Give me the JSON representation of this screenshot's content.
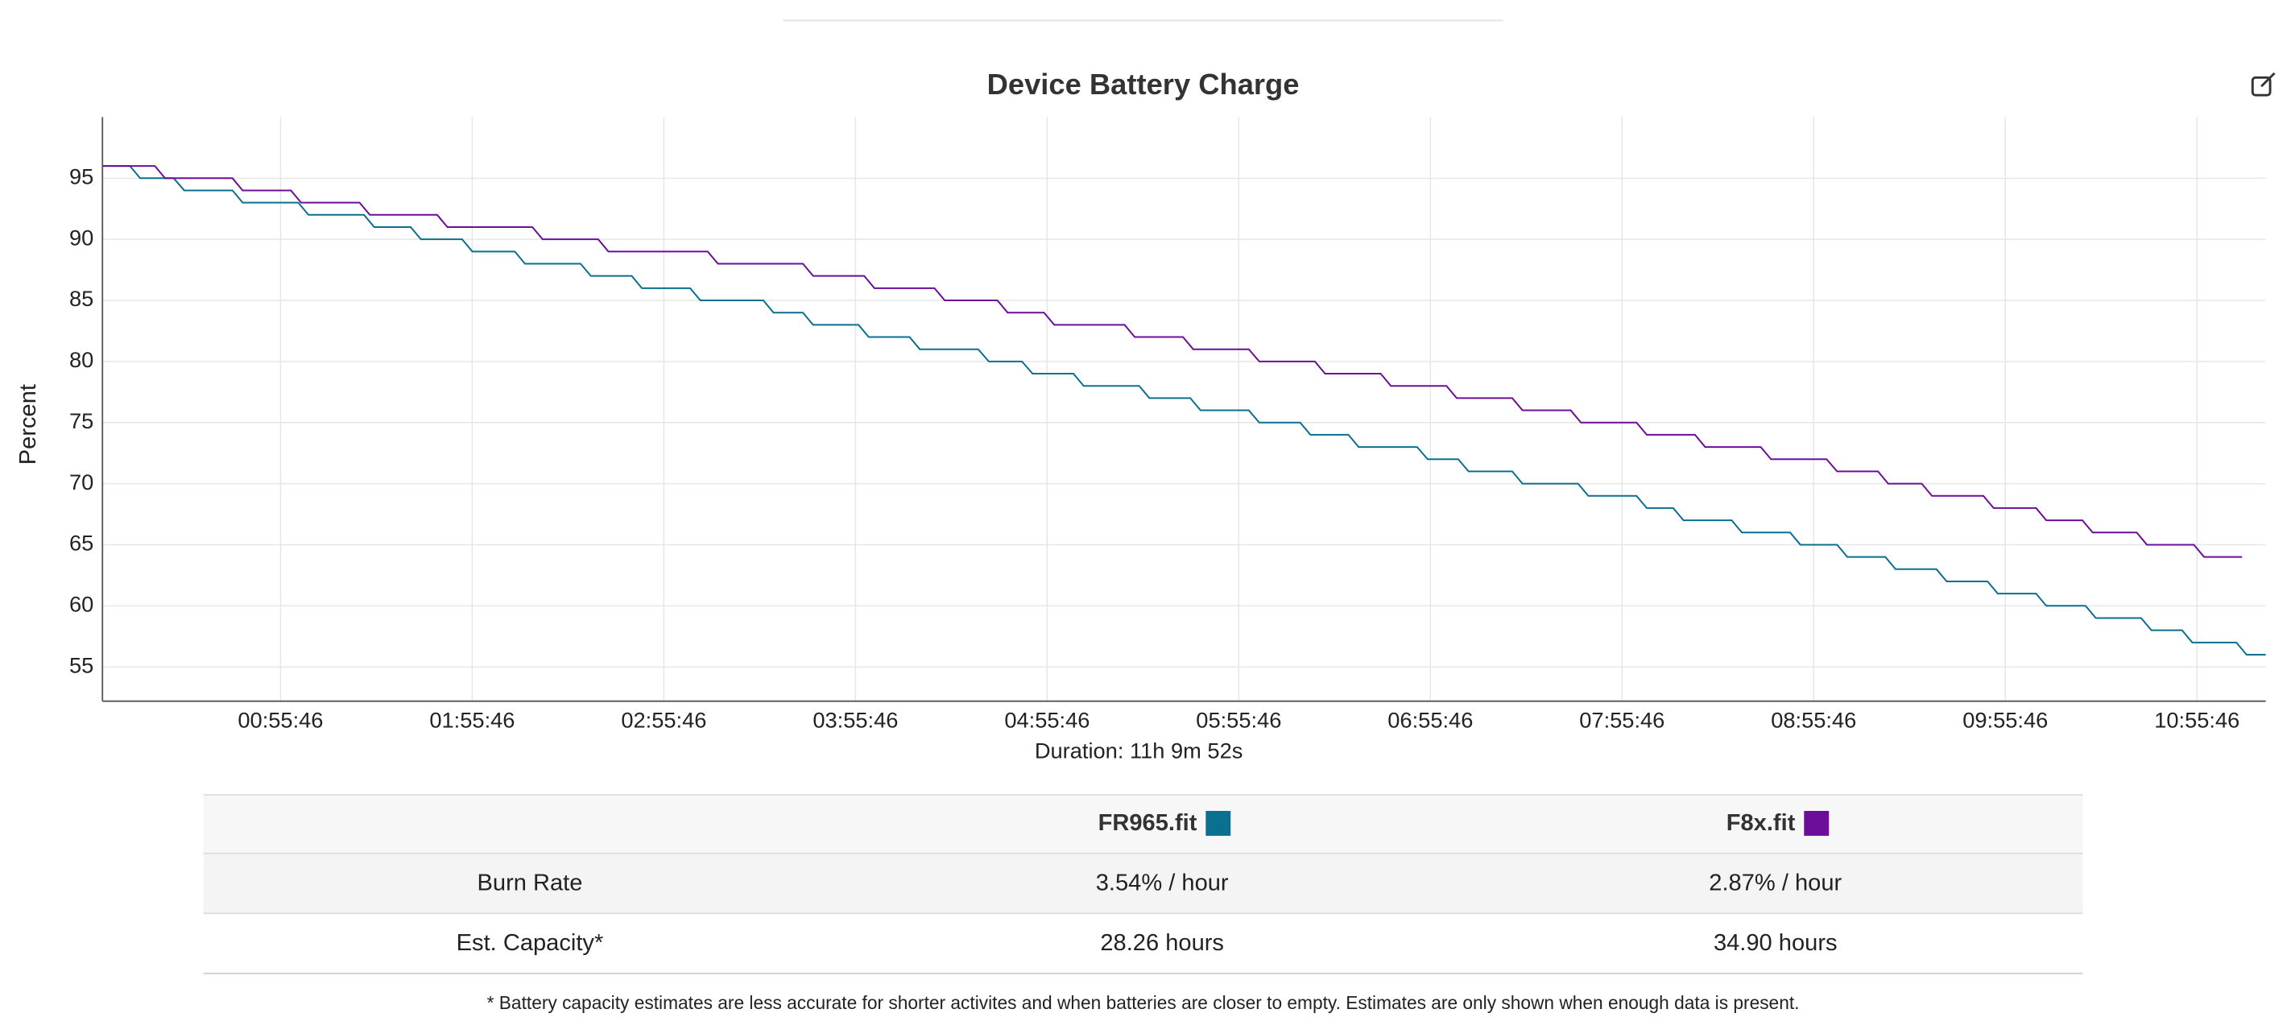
{
  "chart_data": {
    "type": "line",
    "title": "Device Battery Charge",
    "y_label": "Percent",
    "x_label": "Duration: 11h 9m 52s",
    "xlim": [
      0,
      677.3
    ],
    "xticks": [
      {
        "value": 55.77,
        "label": "00:55:46"
      },
      {
        "value": 115.77,
        "label": "01:55:46"
      },
      {
        "value": 175.77,
        "label": "02:55:46"
      },
      {
        "value": 235.77,
        "label": "03:55:46"
      },
      {
        "value": 295.77,
        "label": "04:55:46"
      },
      {
        "value": 355.77,
        "label": "05:55:46"
      },
      {
        "value": 415.77,
        "label": "06:55:46"
      },
      {
        "value": 475.77,
        "label": "07:55:46"
      },
      {
        "value": 535.77,
        "label": "08:55:46"
      },
      {
        "value": 595.77,
        "label": "09:55:46"
      },
      {
        "value": 655.77,
        "label": "10:55:46"
      }
    ],
    "ylim": [
      52.2,
      100
    ],
    "yticks": [
      55,
      60,
      65,
      70,
      75,
      80,
      85,
      90,
      95
    ],
    "grid": true,
    "series": [
      {
        "name": "FR965.fit",
        "color": "#0b6f8f",
        "x": [
          0,
          8.6,
          11.8,
          22.3,
          25.6,
          40.7,
          43.9,
          61.3,
          64.5,
          81.9,
          85.1,
          96.5,
          99.7,
          112.6,
          115.8,
          129.1,
          132.3,
          149.7,
          152.9,
          165.7,
          168.9,
          184.0,
          187.2,
          206.9,
          210.1,
          219.3,
          222.5,
          236.7,
          239.9,
          252.7,
          255.9,
          274.2,
          277.5,
          287.9,
          291.2,
          304.0,
          307.2,
          324.6,
          327.8,
          340.6,
          343.8,
          358.9,
          362.2,
          375.0,
          378.2,
          390.1,
          393.3,
          411.6,
          414.9,
          424.5,
          427.7,
          441.4,
          444.6,
          462.0,
          465.2,
          480.3,
          483.5,
          491.8,
          495.0,
          510.1,
          513.3,
          528.4,
          531.6,
          543.1,
          546.3,
          558.2,
          561.4,
          574.2,
          577.4,
          590.2,
          593.4,
          605.4,
          608.6,
          620.9,
          624.1,
          638.3,
          641.5,
          651.1,
          654.3,
          668.1,
          671.3,
          677.3
        ],
        "values": [
          96,
          96,
          95,
          95,
          94,
          94,
          93,
          93,
          92,
          92,
          91,
          91,
          90,
          90,
          89,
          89,
          88,
          88,
          87,
          87,
          86,
          86,
          85,
          85,
          84,
          84,
          83,
          83,
          82,
          82,
          81,
          81,
          80,
          80,
          79,
          79,
          78,
          78,
          77,
          77,
          76,
          76,
          75,
          75,
          74,
          74,
          73,
          73,
          72,
          72,
          71,
          71,
          70,
          70,
          69,
          69,
          68,
          68,
          67,
          67,
          66,
          66,
          65,
          65,
          64,
          64,
          63,
          63,
          62,
          62,
          61,
          61,
          60,
          60,
          59,
          59,
          58,
          58,
          57,
          57,
          56,
          56
        ]
      },
      {
        "name": "F8x.fit",
        "color": "#6b0f9a",
        "x": [
          0,
          16.4,
          19.6,
          40.7,
          43.9,
          59.0,
          62.2,
          80.5,
          83.7,
          104.8,
          108.0,
          134.6,
          137.8,
          155.2,
          158.4,
          189.5,
          192.7,
          219.3,
          222.5,
          238.5,
          241.7,
          260.5,
          263.7,
          280.2,
          283.4,
          294.8,
          298.0,
          320.0,
          323.2,
          338.3,
          341.5,
          358.9,
          362.2,
          379.6,
          382.8,
          400.2,
          403.4,
          420.8,
          424.0,
          441.4,
          444.6,
          459.7,
          462.9,
          480.3,
          483.5,
          498.6,
          501.8,
          519.2,
          522.4,
          539.8,
          543.1,
          555.9,
          559.1,
          569.6,
          572.8,
          588.9,
          592.1,
          605.4,
          608.6,
          619.9,
          623.1,
          636.9,
          640.1,
          654.8,
          658.0,
          669.9
        ],
        "values": [
          96,
          96,
          95,
          95,
          94,
          94,
          93,
          93,
          92,
          92,
          91,
          91,
          90,
          90,
          89,
          89,
          88,
          88,
          87,
          87,
          86,
          86,
          85,
          85,
          84,
          84,
          83,
          83,
          82,
          82,
          81,
          81,
          80,
          80,
          79,
          79,
          78,
          78,
          77,
          77,
          76,
          76,
          75,
          75,
          74,
          74,
          73,
          73,
          72,
          72,
          71,
          71,
          70,
          70,
          69,
          69,
          68,
          68,
          67,
          67,
          66,
          66,
          65,
          65,
          64,
          64
        ]
      }
    ]
  },
  "table": {
    "rows": [
      {
        "label": "Burn Rate",
        "cells": [
          "3.54% / hour",
          "2.87% / hour"
        ]
      },
      {
        "label": "Est. Capacity*",
        "cells": [
          "28.26 hours",
          "34.90 hours"
        ]
      }
    ]
  },
  "footnote": "* Battery capacity estimates are less accurate for shorter activites and when batteries are closer to empty. Estimates are only shown when enough data is present."
}
